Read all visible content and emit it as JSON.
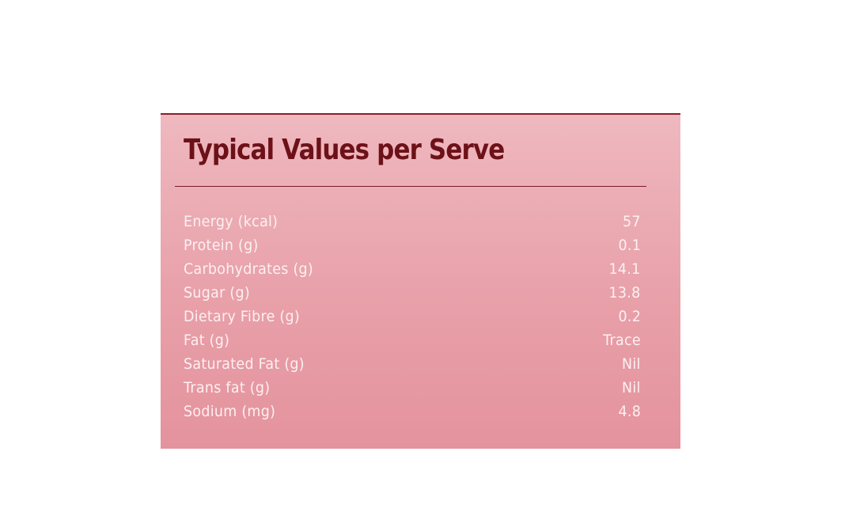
{
  "nutrition_panel": {
    "title": "Typical Values per Serve",
    "rows": [
      {
        "label": "Energy (kcal)",
        "value": "57"
      },
      {
        "label": "Protein (g)",
        "value": "0.1"
      },
      {
        "label": "Carbohydrates (g)",
        "value": "14.1"
      },
      {
        "label": "Sugar (g)",
        "value": "13.8"
      },
      {
        "label": "Dietary Fibre (g)",
        "value": "0.2"
      },
      {
        "label": "Fat (g)",
        "value": "Trace"
      },
      {
        "label": "Saturated Fat (g)",
        "value": "Nil"
      },
      {
        "label": "Trans fat (g)",
        "value": "Nil"
      },
      {
        "label": "Sodium (mg)",
        "value": "4.8"
      }
    ]
  },
  "colors": {
    "panel_background": "#eaa7af",
    "title_color": "#6d1119",
    "row_text_color": "#fdf0f2",
    "rule_color": "#7a1a24"
  }
}
